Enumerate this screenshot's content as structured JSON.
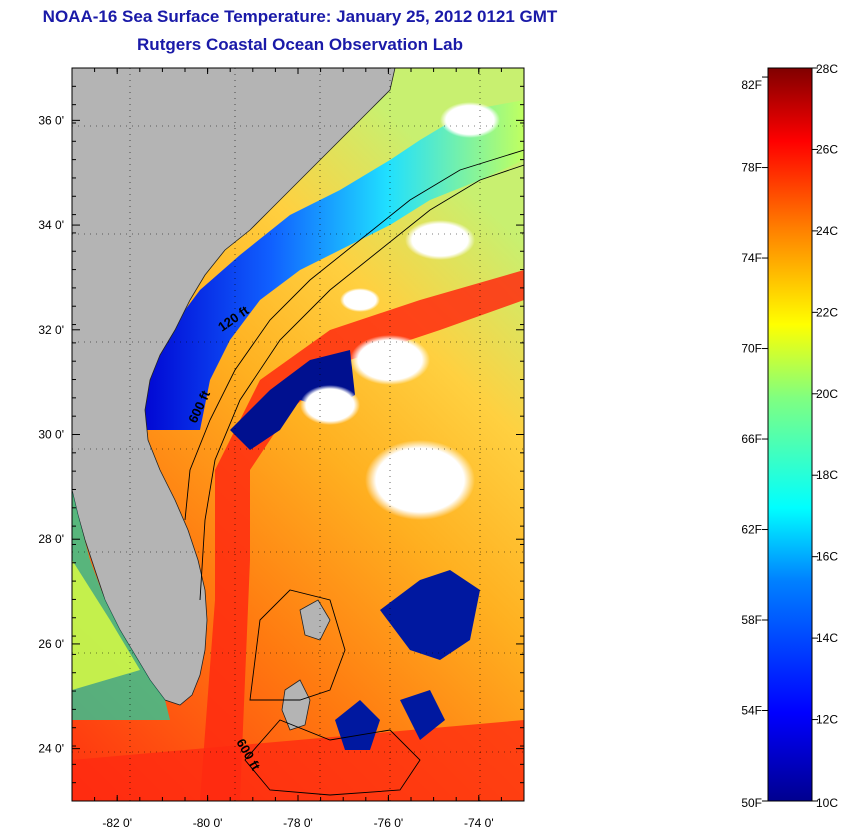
{
  "title": {
    "line1": "NOAA-16 Sea Surface Temperature:  January 25, 2012 0121 GMT",
    "line2": "Rutgers Coastal Ocean Observation Lab"
  },
  "map": {
    "lon_range": [
      -83,
      -73
    ],
    "lat_range": [
      23,
      37
    ],
    "lon_ticks": [
      {
        "value": -82,
        "label": "-82 0'"
      },
      {
        "value": -80,
        "label": "-80 0'"
      },
      {
        "value": -78,
        "label": "-78 0'"
      },
      {
        "value": -76,
        "label": "-76 0'"
      },
      {
        "value": -74,
        "label": "-74 0'"
      }
    ],
    "lat_ticks": [
      {
        "value": 24,
        "label": "24 0'"
      },
      {
        "value": 26,
        "label": "26 0'"
      },
      {
        "value": 28,
        "label": "28 0'"
      },
      {
        "value": 30,
        "label": "30 0'"
      },
      {
        "value": 32,
        "label": "32 0'"
      },
      {
        "value": 34,
        "label": "34 0'"
      },
      {
        "value": 36,
        "label": "36 0'"
      }
    ],
    "contour_labels": [
      "120 ft",
      "600 ft",
      "600 ft"
    ],
    "land_color": "#b4b4b4",
    "cloud_color": "#ffffff"
  },
  "colorbar": {
    "celsius_range": [
      10,
      28
    ],
    "fahrenheit_labels": [
      "82F",
      "78F",
      "74F",
      "70F",
      "66F",
      "62F",
      "58F",
      "54F",
      "50F"
    ],
    "celsius_labels": [
      "28C",
      "26C",
      "24C",
      "22C",
      "20C",
      "18C",
      "16C",
      "14C",
      "12C",
      "10C"
    ],
    "colors": [
      "#00008f",
      "#0000ff",
      "#0080ff",
      "#00ffff",
      "#80ff80",
      "#ffff00",
      "#ff8000",
      "#ff0000",
      "#800000"
    ]
  }
}
